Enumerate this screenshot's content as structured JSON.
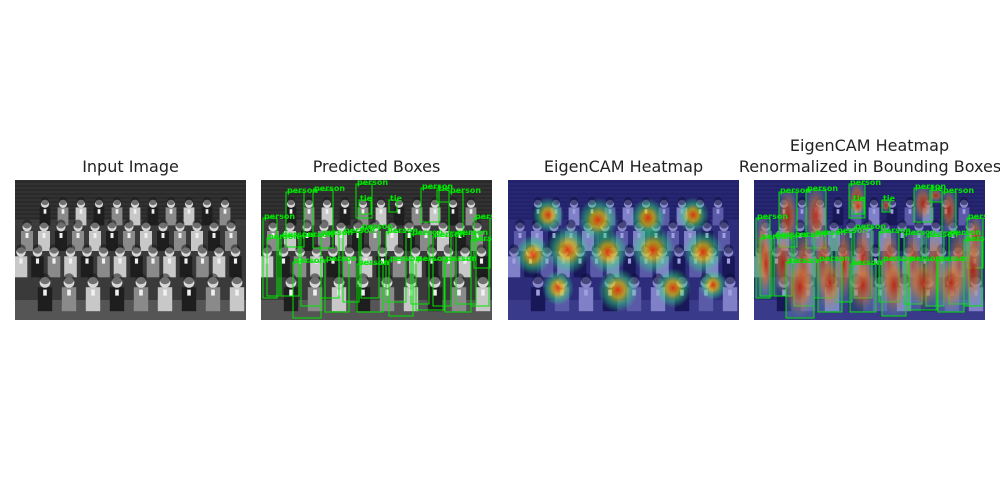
{
  "panels": [
    {
      "title": "Input Image",
      "style": "grayscale"
    },
    {
      "title": "Predicted Boxes",
      "style": "grayscale+boxes"
    },
    {
      "title": "EigenCAM Heatmap",
      "style": "heatmap"
    },
    {
      "title_line1": "EigenCAM Heatmap",
      "title_line2": "Renormalized in Bounding Boxes",
      "style": "renormalized"
    }
  ],
  "detection_labels": [
    "person",
    "tie"
  ],
  "box_color": "#00e600",
  "heat_background": "#2a2a8c"
}
